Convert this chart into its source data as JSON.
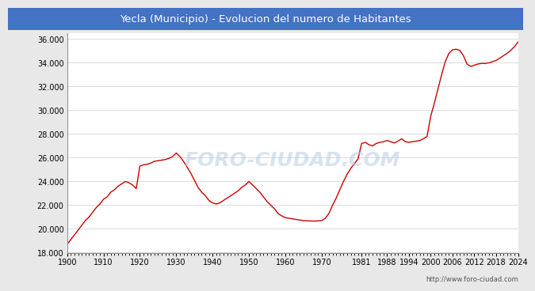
{
  "title": "Yecla (Municipio) - Evolucion del numero de Habitantes",
  "title_bg": "#4472c4",
  "title_color": "white",
  "watermark": "FORO-CIUDAD.COM",
  "url": "http://www.foro-ciudad.com",
  "years": [
    1900,
    1901,
    1902,
    1903,
    1904,
    1905,
    1906,
    1907,
    1908,
    1909,
    1910,
    1911,
    1912,
    1913,
    1914,
    1915,
    1916,
    1917,
    1918,
    1919,
    1920,
    1921,
    1922,
    1923,
    1924,
    1925,
    1926,
    1927,
    1928,
    1929,
    1930,
    1931,
    1932,
    1933,
    1934,
    1935,
    1936,
    1937,
    1938,
    1939,
    1940,
    1941,
    1942,
    1943,
    1944,
    1945,
    1946,
    1947,
    1948,
    1949,
    1950,
    1951,
    1952,
    1953,
    1954,
    1955,
    1956,
    1957,
    1958,
    1959,
    1960,
    1961,
    1962,
    1963,
    1964,
    1965,
    1966,
    1967,
    1968,
    1969,
    1970,
    1971,
    1972,
    1973,
    1974,
    1975,
    1976,
    1977,
    1978,
    1979,
    1980,
    1981,
    1982,
    1983,
    1984,
    1985,
    1986,
    1987,
    1988,
    1989,
    1990,
    1991,
    1992,
    1993,
    1994,
    1995,
    1996,
    1997,
    1998,
    1999,
    2000,
    2001,
    2002,
    2003,
    2004,
    2005,
    2006,
    2007,
    2008,
    2009,
    2010,
    2011,
    2012,
    2013,
    2014,
    2015,
    2016,
    2017,
    2018,
    2019,
    2020,
    2021,
    2022,
    2023,
    2024
  ],
  "population": [
    18700,
    19100,
    19500,
    19900,
    20300,
    20700,
    21000,
    21400,
    21800,
    22100,
    22500,
    22700,
    23100,
    23300,
    23600,
    23800,
    24000,
    23900,
    23700,
    23400,
    25300,
    25400,
    25450,
    25550,
    25700,
    25750,
    25800,
    25850,
    25950,
    26100,
    26400,
    26100,
    25700,
    25200,
    24700,
    24100,
    23500,
    23100,
    22800,
    22400,
    22200,
    22100,
    22200,
    22400,
    22600,
    22800,
    23000,
    23200,
    23500,
    23700,
    24000,
    23700,
    23400,
    23100,
    22700,
    22300,
    22000,
    21700,
    21300,
    21100,
    20950,
    20900,
    20850,
    20800,
    20750,
    20700,
    20680,
    20670,
    20660,
    20680,
    20700,
    20900,
    21300,
    22000,
    22600,
    23300,
    24000,
    24600,
    25100,
    25500,
    25900,
    27200,
    27300,
    27100,
    27000,
    27200,
    27300,
    27350,
    27450,
    27350,
    27250,
    27400,
    27600,
    27350,
    27300,
    27350,
    27400,
    27450,
    27600,
    27800,
    29500,
    30600,
    31800,
    33000,
    34100,
    34800,
    35100,
    35150,
    35050,
    34600,
    33900,
    33700,
    33800,
    33900,
    33950,
    33950,
    34000,
    34100,
    34200,
    34400,
    34600,
    34800,
    35050,
    35350,
    35750
  ],
  "line_color": "#cc0000",
  "line_width": 1.0,
  "outer_bg": "#e8e8e8",
  "plot_bg_color": "#ffffff",
  "grid_color": "#cccccc",
  "ylim": [
    18000,
    36500
  ],
  "yticks": [
    18000,
    20000,
    22000,
    24000,
    26000,
    28000,
    30000,
    32000,
    34000,
    36000
  ],
  "xtick_labels": [
    "1900",
    "1910",
    "1920",
    "1930",
    "1940",
    "1950",
    "1960",
    "1970",
    "1981",
    "1988",
    "1994",
    "2000",
    "2006",
    "2012",
    "2018",
    "2024"
  ],
  "xtick_positions": [
    1900,
    1910,
    1920,
    1930,
    1940,
    1950,
    1960,
    1970,
    1981,
    1988,
    1994,
    2000,
    2006,
    2012,
    2018,
    2024
  ]
}
